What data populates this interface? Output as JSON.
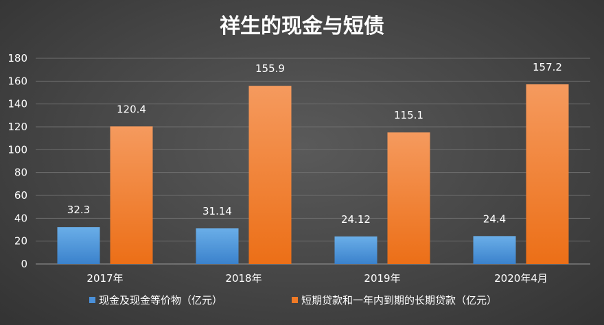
{
  "chart_data": {
    "type": "bar",
    "title": "祥生的现金与短债",
    "categories": [
      "2017年",
      "2018年",
      "2019年",
      "2020年4月"
    ],
    "series": [
      {
        "name": "现金及现金等价物（亿元）",
        "values": [
          32.3,
          31.14,
          24.12,
          24.4
        ],
        "labels": [
          "32.3",
          "31.14",
          "24.12",
          "24.4"
        ],
        "color": "#4a90d9"
      },
      {
        "name": "短期贷款和一年内到期的长期贷款（亿元）",
        "values": [
          120.4,
          155.9,
          115.1,
          157.2
        ],
        "labels": [
          "120.4",
          "155.9",
          "115.1",
          "157.2"
        ],
        "color": "#f07a26"
      }
    ],
    "ylim": [
      0,
      180
    ],
    "yticks": [
      0,
      20,
      40,
      60,
      80,
      100,
      120,
      140,
      160,
      180
    ],
    "grid": true,
    "legend": "bottom"
  }
}
